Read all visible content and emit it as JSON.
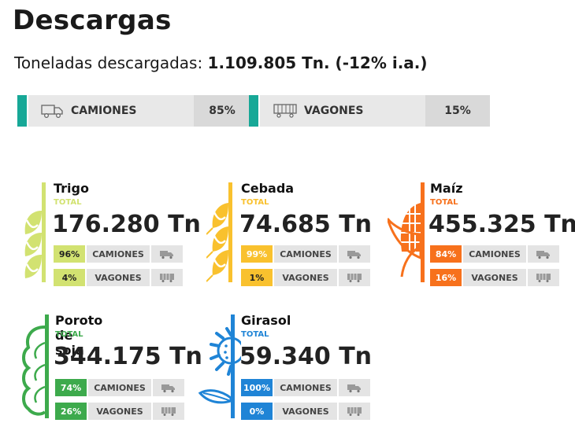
{
  "title": "Descargas",
  "subtitle": {
    "prefix": "Toneladas descargadas:",
    "value": "1.109.805 Tn. (-12% i.a.)"
  },
  "summary": [
    {
      "label": "CAMIONES",
      "pct": "85%",
      "icon": "truck-icon"
    },
    {
      "label": "VAGONES",
      "pct": "15%",
      "icon": "wagon-icon"
    }
  ],
  "colors": {
    "accent": "#17a897",
    "trigo": "#d2e271",
    "cebada": "#f9c12e",
    "maiz": "#f7711c",
    "soja": "#3daa4c",
    "girasol": "#1f84d6"
  },
  "crops": [
    {
      "name": "Trigo",
      "total_label": "TOTAL",
      "amount": "176.280 Tn",
      "icon": "wheat-icon",
      "rows": [
        {
          "pct": "96%",
          "label": "CAMIONES"
        },
        {
          "pct": "4%",
          "label": "VAGONES"
        }
      ]
    },
    {
      "name": "Cebada",
      "total_label": "TOTAL",
      "amount": "74.685 Tn",
      "icon": "barley-icon",
      "rows": [
        {
          "pct": "99%",
          "label": "CAMIONES"
        },
        {
          "pct": "1%",
          "label": "VAGONES"
        }
      ]
    },
    {
      "name": "Maíz",
      "total_label": "TOTAL",
      "amount": "455.325 Tn",
      "icon": "corn-icon",
      "rows": [
        {
          "pct": "84%",
          "label": "CAMIONES"
        },
        {
          "pct": "16%",
          "label": "VAGONES"
        }
      ]
    },
    {
      "name": "Poroto de soja",
      "total_label": "TOTAL",
      "amount": "344.175 Tn",
      "icon": "soybean-icon",
      "rows": [
        {
          "pct": "74%",
          "label": "CAMIONES"
        },
        {
          "pct": "26%",
          "label": "VAGONES"
        }
      ]
    },
    {
      "name": "Girasol",
      "total_label": "TOTAL",
      "amount": "59.340 Tn",
      "icon": "sunflower-icon",
      "rows": [
        {
          "pct": "100%",
          "label": "CAMIONES"
        },
        {
          "pct": "0%",
          "label": "VAGONES"
        }
      ]
    }
  ]
}
